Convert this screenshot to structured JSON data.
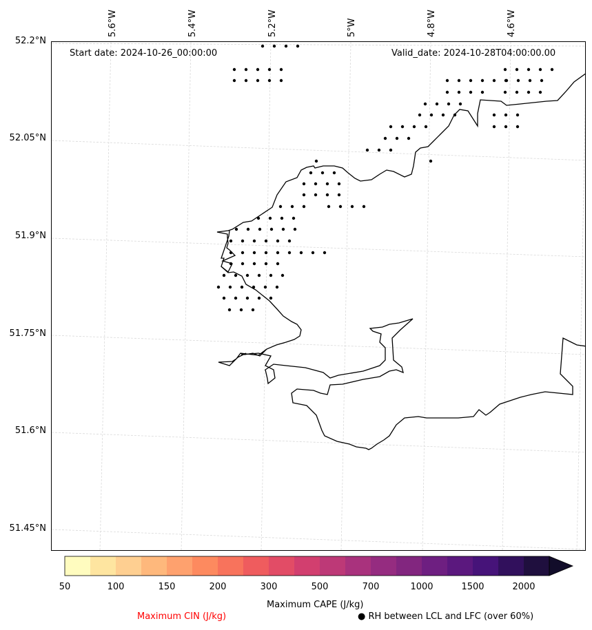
{
  "map": {
    "start_date_label": "Start date: 2024-10-26_00:00:00",
    "valid_date_label": "Valid_date: 2024-10-28T04:00:00.00",
    "lat_labels": [
      "52.2°N",
      "52.05°N",
      "51.9°N",
      "51.75°N",
      "51.6°N",
      "51.45°N"
    ],
    "lon_labels": [
      "5.6°W",
      "5.4°W",
      "5.2°W",
      "5°W",
      "4.8°W",
      "4.6°W"
    ],
    "coast_color": "#000000",
    "grid_color": "#cccccc",
    "dot_color": "#000000"
  },
  "colorbar": {
    "label": "Maximum CAPE (J/kg)",
    "ticks": [
      "50",
      "100",
      "150",
      "200",
      "300",
      "500",
      "700",
      "1000",
      "1500",
      "2000"
    ],
    "colors": [
      "#fffcbf",
      "#fee5a0",
      "#fecf91",
      "#feb87c",
      "#fea16e",
      "#fd8a5f",
      "#f8735c",
      "#ef5c5e",
      "#e24c66",
      "#d23f6f",
      "#bd3977",
      "#a9327d",
      "#952c80",
      "#82267f",
      "#6e1f81",
      "#5b187e",
      "#461379",
      "#31105c",
      "#1f0f3e",
      "#120d2a"
    ]
  },
  "legend": {
    "cin_label": "Maximum CIN (J/kg)",
    "cin_color": "#ff0000",
    "rh_symbol": "●",
    "rh_label": "RH between LCL and LFC (over 60%)"
  }
}
